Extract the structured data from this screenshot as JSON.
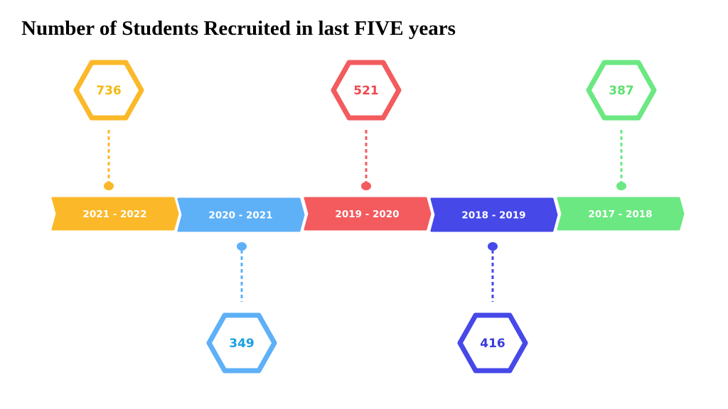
{
  "title": "Number of Students Recruited in last FIVE years",
  "timeline": [
    {
      "year": "2021 - 2022",
      "count": "736",
      "color": "#FBB829",
      "text_color": "#F2B90F",
      "side": "top"
    },
    {
      "year": "2020 - 2021",
      "count": "349",
      "color": "#5EB0F7",
      "text_color": "#1AA0E0",
      "side": "bottom"
    },
    {
      "year": "2019 - 2020",
      "count": "521",
      "color": "#F35B5E",
      "text_color": "#F0484E",
      "side": "top"
    },
    {
      "year": "2018 - 2019",
      "count": "416",
      "color": "#4648E8",
      "text_color": "#3A3CD8",
      "side": "bottom"
    },
    {
      "year": "2017 - 2018",
      "count": "387",
      "color": "#6BE882",
      "text_color": "#5DE070",
      "side": "top"
    }
  ]
}
